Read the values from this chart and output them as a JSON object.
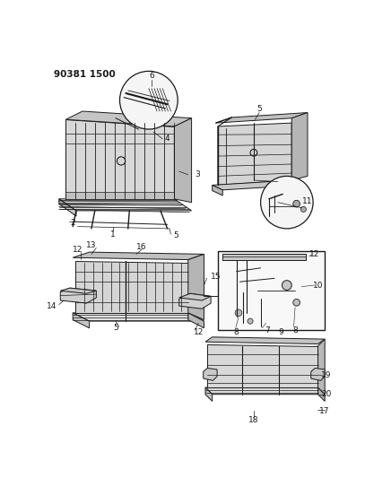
{
  "title": "90381 1500",
  "bg_color": "#ffffff",
  "line_color": "#1a1a1a",
  "fig_width": 4.07,
  "fig_height": 5.33,
  "dpi": 100
}
